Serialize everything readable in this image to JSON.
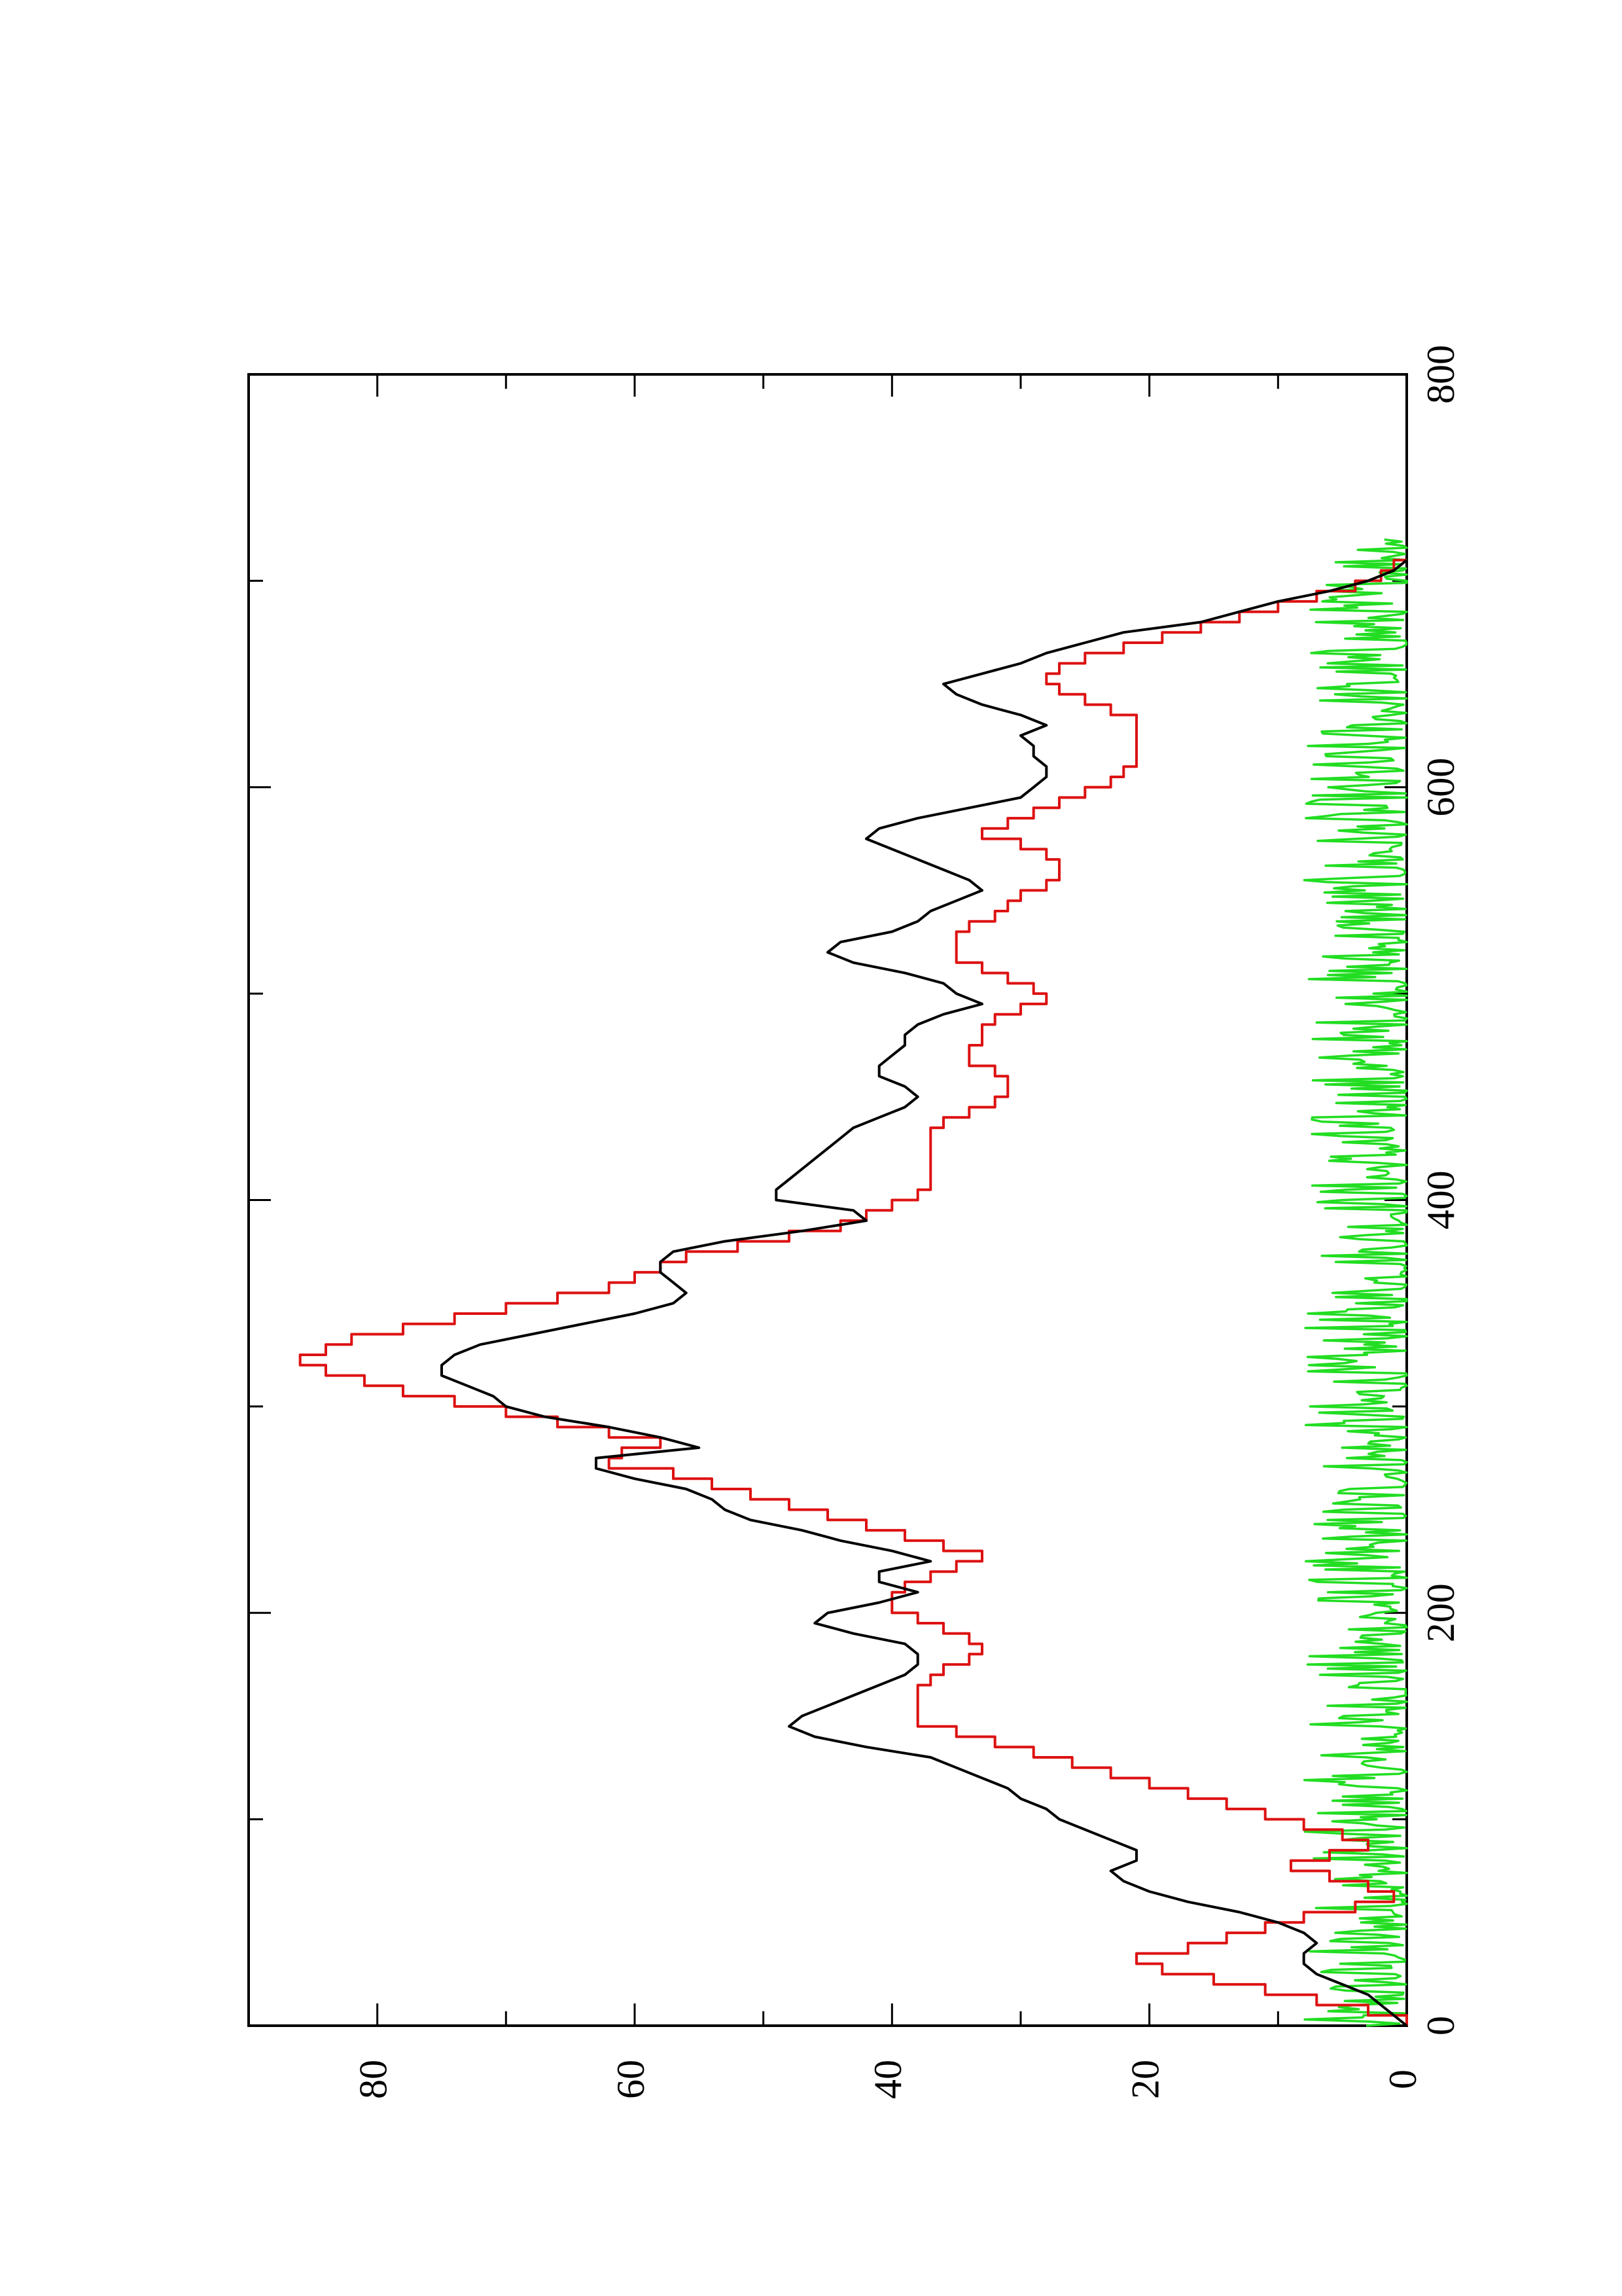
{
  "chart_data": {
    "type": "line",
    "title": "",
    "xlabel": "",
    "ylabel": "",
    "orientation": "rotated 90° counter-clockwise on the page",
    "xlim": [
      0,
      800
    ],
    "ylim": [
      0,
      90
    ],
    "x_ticks": [
      0,
      200,
      400,
      600,
      800
    ],
    "x_minor_ticks": [
      100,
      300,
      500,
      700
    ],
    "y_ticks": [
      0,
      20,
      40,
      60,
      80
    ],
    "y_minor_ticks": [
      10,
      30,
      50,
      70
    ],
    "grid": false,
    "legend": "none",
    "series": [
      {
        "color": "#000000",
        "style": "irregular line",
        "points": [
          [
            0,
            0
          ],
          [
            5,
            1
          ],
          [
            10,
            2
          ],
          [
            15,
            3
          ],
          [
            20,
            5
          ],
          [
            25,
            7
          ],
          [
            30,
            8
          ],
          [
            35,
            8
          ],
          [
            40,
            7
          ],
          [
            45,
            8
          ],
          [
            50,
            10
          ],
          [
            55,
            13
          ],
          [
            60,
            17
          ],
          [
            65,
            20
          ],
          [
            70,
            22
          ],
          [
            75,
            23
          ],
          [
            80,
            21
          ],
          [
            85,
            21
          ],
          [
            90,
            23
          ],
          [
            95,
            25
          ],
          [
            100,
            27
          ],
          [
            105,
            28
          ],
          [
            110,
            30
          ],
          [
            115,
            31
          ],
          [
            120,
            33
          ],
          [
            125,
            35
          ],
          [
            130,
            37
          ],
          [
            135,
            42
          ],
          [
            140,
            46
          ],
          [
            145,
            48
          ],
          [
            150,
            47
          ],
          [
            155,
            45
          ],
          [
            160,
            43
          ],
          [
            165,
            41
          ],
          [
            170,
            39
          ],
          [
            175,
            38
          ],
          [
            180,
            38
          ],
          [
            185,
            39
          ],
          [
            190,
            43
          ],
          [
            195,
            46
          ],
          [
            200,
            45
          ],
          [
            205,
            41
          ],
          [
            210,
            38
          ],
          [
            215,
            41
          ],
          [
            220,
            41
          ],
          [
            225,
            37
          ],
          [
            230,
            40
          ],
          [
            235,
            44
          ],
          [
            240,
            47
          ],
          [
            245,
            51
          ],
          [
            250,
            53
          ],
          [
            255,
            54
          ],
          [
            260,
            56
          ],
          [
            265,
            60
          ],
          [
            270,
            63
          ],
          [
            275,
            63
          ],
          [
            280,
            55
          ],
          [
            285,
            58
          ],
          [
            290,
            62
          ],
          [
            295,
            67
          ],
          [
            300,
            70
          ],
          [
            305,
            71
          ],
          [
            310,
            73
          ],
          [
            315,
            75
          ],
          [
            320,
            75
          ],
          [
            325,
            74
          ],
          [
            330,
            72
          ],
          [
            335,
            68
          ],
          [
            340,
            64
          ],
          [
            345,
            60
          ],
          [
            350,
            57
          ],
          [
            355,
            56
          ],
          [
            360,
            57
          ],
          [
            365,
            58
          ],
          [
            370,
            58
          ],
          [
            375,
            57
          ],
          [
            380,
            53
          ],
          [
            385,
            47
          ],
          [
            390,
            42
          ],
          [
            395,
            43
          ],
          [
            400,
            49
          ],
          [
            405,
            49
          ],
          [
            410,
            48
          ],
          [
            415,
            47
          ],
          [
            420,
            46
          ],
          [
            425,
            45
          ],
          [
            430,
            44
          ],
          [
            435,
            43
          ],
          [
            440,
            41
          ],
          [
            445,
            39
          ],
          [
            450,
            38
          ],
          [
            455,
            39
          ],
          [
            460,
            41
          ],
          [
            465,
            41
          ],
          [
            470,
            40
          ],
          [
            475,
            39
          ],
          [
            480,
            39
          ],
          [
            485,
            38
          ],
          [
            490,
            36
          ],
          [
            495,
            33
          ],
          [
            500,
            35
          ],
          [
            505,
            36
          ],
          [
            510,
            39
          ],
          [
            515,
            43
          ],
          [
            520,
            45
          ],
          [
            525,
            44
          ],
          [
            530,
            40
          ],
          [
            535,
            38
          ],
          [
            540,
            37
          ],
          [
            545,
            35
          ],
          [
            550,
            33
          ],
          [
            555,
            34
          ],
          [
            560,
            36
          ],
          [
            565,
            38
          ],
          [
            570,
            40
          ],
          [
            575,
            42
          ],
          [
            580,
            41
          ],
          [
            585,
            38
          ],
          [
            590,
            34
          ],
          [
            595,
            30
          ],
          [
            600,
            29
          ],
          [
            605,
            28
          ],
          [
            610,
            28
          ],
          [
            615,
            29
          ],
          [
            620,
            29
          ],
          [
            625,
            30
          ],
          [
            630,
            28
          ],
          [
            635,
            30
          ],
          [
            640,
            33
          ],
          [
            645,
            35
          ],
          [
            650,
            36
          ],
          [
            655,
            33
          ],
          [
            660,
            30
          ],
          [
            665,
            28
          ],
          [
            670,
            25
          ],
          [
            675,
            22
          ],
          [
            680,
            16
          ],
          [
            685,
            13
          ],
          [
            690,
            10
          ],
          [
            695,
            6
          ],
          [
            700,
            3
          ],
          [
            705,
            1
          ],
          [
            710,
            0
          ]
        ]
      },
      {
        "color": "#dd1111",
        "style": "step line",
        "points": [
          [
            0,
            0
          ],
          [
            5,
            3
          ],
          [
            10,
            7
          ],
          [
            15,
            11
          ],
          [
            20,
            15
          ],
          [
            25,
            19
          ],
          [
            30,
            21
          ],
          [
            35,
            17
          ],
          [
            40,
            14
          ],
          [
            45,
            11
          ],
          [
            50,
            8
          ],
          [
            55,
            4
          ],
          [
            60,
            1
          ],
          [
            65,
            3
          ],
          [
            70,
            6
          ],
          [
            75,
            9
          ],
          [
            80,
            6
          ],
          [
            85,
            3
          ],
          [
            90,
            5
          ],
          [
            95,
            8
          ],
          [
            100,
            11
          ],
          [
            105,
            14
          ],
          [
            110,
            17
          ],
          [
            115,
            20
          ],
          [
            120,
            23
          ],
          [
            125,
            26
          ],
          [
            130,
            29
          ],
          [
            135,
            32
          ],
          [
            140,
            35
          ],
          [
            145,
            38
          ],
          [
            150,
            38
          ],
          [
            155,
            38
          ],
          [
            160,
            38
          ],
          [
            165,
            37
          ],
          [
            170,
            36
          ],
          [
            175,
            34
          ],
          [
            180,
            33
          ],
          [
            185,
            34
          ],
          [
            190,
            36
          ],
          [
            195,
            38
          ],
          [
            200,
            40
          ],
          [
            205,
            40
          ],
          [
            210,
            39
          ],
          [
            215,
            37
          ],
          [
            220,
            35
          ],
          [
            225,
            33
          ],
          [
            230,
            36
          ],
          [
            235,
            39
          ],
          [
            240,
            42
          ],
          [
            245,
            45
          ],
          [
            250,
            48
          ],
          [
            255,
            51
          ],
          [
            260,
            54
          ],
          [
            265,
            57
          ],
          [
            270,
            62
          ],
          [
            275,
            61
          ],
          [
            280,
            58
          ],
          [
            285,
            62
          ],
          [
            290,
            66
          ],
          [
            295,
            70
          ],
          [
            300,
            74
          ],
          [
            305,
            78
          ],
          [
            310,
            81
          ],
          [
            315,
            84
          ],
          [
            320,
            86
          ],
          [
            325,
            84
          ],
          [
            330,
            82
          ],
          [
            335,
            78
          ],
          [
            340,
            74
          ],
          [
            345,
            70
          ],
          [
            350,
            66
          ],
          [
            355,
            62
          ],
          [
            360,
            60
          ],
          [
            365,
            58
          ],
          [
            370,
            56
          ],
          [
            375,
            52
          ],
          [
            380,
            48
          ],
          [
            385,
            44
          ],
          [
            390,
            42
          ],
          [
            395,
            40
          ],
          [
            400,
            38
          ],
          [
            405,
            37
          ],
          [
            410,
            37
          ],
          [
            415,
            37
          ],
          [
            420,
            37
          ],
          [
            425,
            37
          ],
          [
            430,
            37
          ],
          [
            435,
            36
          ],
          [
            440,
            34
          ],
          [
            445,
            32
          ],
          [
            450,
            31
          ],
          [
            455,
            31
          ],
          [
            460,
            32
          ],
          [
            465,
            34
          ],
          [
            470,
            34
          ],
          [
            475,
            33
          ],
          [
            480,
            33
          ],
          [
            485,
            32
          ],
          [
            490,
            30
          ],
          [
            495,
            28
          ],
          [
            500,
            29
          ],
          [
            505,
            31
          ],
          [
            510,
            33
          ],
          [
            515,
            35
          ],
          [
            520,
            35
          ],
          [
            525,
            35
          ],
          [
            530,
            34
          ],
          [
            535,
            32
          ],
          [
            540,
            31
          ],
          [
            545,
            30
          ],
          [
            550,
            28
          ],
          [
            555,
            27
          ],
          [
            560,
            27
          ],
          [
            565,
            28
          ],
          [
            570,
            30
          ],
          [
            575,
            33
          ],
          [
            580,
            31
          ],
          [
            585,
            29
          ],
          [
            590,
            27
          ],
          [
            595,
            25
          ],
          [
            600,
            23
          ],
          [
            605,
            22
          ],
          [
            610,
            21
          ],
          [
            615,
            21
          ],
          [
            620,
            21
          ],
          [
            625,
            21
          ],
          [
            630,
            21
          ],
          [
            635,
            23
          ],
          [
            640,
            25
          ],
          [
            645,
            27
          ],
          [
            650,
            28
          ],
          [
            655,
            27
          ],
          [
            660,
            25
          ],
          [
            665,
            22
          ],
          [
            670,
            19
          ],
          [
            675,
            16
          ],
          [
            680,
            13
          ],
          [
            685,
            10
          ],
          [
            690,
            7
          ],
          [
            695,
            4
          ],
          [
            700,
            2
          ],
          [
            705,
            1
          ],
          [
            710,
            0
          ]
        ]
      },
      {
        "color": "#22dd22",
        "style": "noisy line near zero",
        "x_range": [
          0,
          720
        ],
        "y_range": [
          0,
          8
        ]
      }
    ]
  }
}
